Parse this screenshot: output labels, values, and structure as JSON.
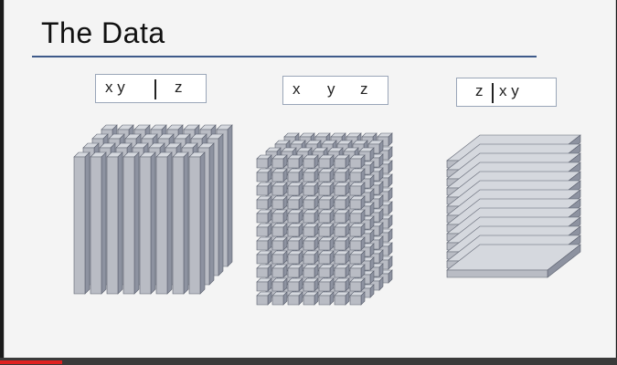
{
  "slide": {
    "title": "The Data",
    "labels": [
      {
        "left": "x y",
        "right": "z"
      },
      {
        "x": "x",
        "y": "y",
        "z": "z"
      },
      {
        "left": "z",
        "right": "x y"
      }
    ]
  },
  "player": {
    "progress_fraction": 0.1
  },
  "colors": {
    "accent": "#3e5a8a",
    "block_front": "#b9bcc4",
    "block_side": "#8d92a0",
    "block_top": "#d5d8de",
    "progress": "#e02020"
  }
}
